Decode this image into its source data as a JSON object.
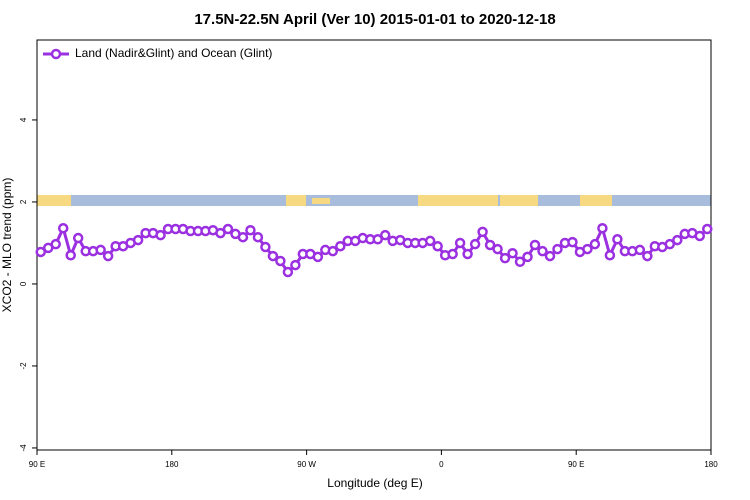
{
  "chart_data": {
    "type": "line",
    "title": "17.5N-22.5N April (Ver 10)   2015-01-01 to 2020-12-18",
    "x_label": "Longitude (deg E)",
    "y_label": "XCO2 - MLO trend (ppm)",
    "xlim": [
      90,
      540
    ],
    "ylim": [
      -4.05,
      5.95
    ],
    "xticks": [
      {
        "value": 90,
        "label": "90 E"
      },
      180,
      {
        "value": 270,
        "label": "90 W"
      },
      {
        "value": 360,
        "label": "0"
      },
      {
        "value": 450,
        "label": "90 E"
      },
      {
        "value": 540,
        "label": "180"
      }
    ],
    "yticks": [
      -4,
      -2,
      0,
      2,
      4
    ],
    "legend": "top-left",
    "x": [
      92.5,
      97.5,
      102.5,
      107.5,
      112.5,
      117.5,
      122.5,
      127.5,
      132.5,
      137.5,
      142.5,
      147.5,
      152.5,
      157.5,
      162.5,
      167.5,
      172.5,
      177.5,
      182.5,
      187.5,
      192.5,
      197.5,
      202.5,
      207.5,
      212.5,
      217.5,
      222.5,
      227.5,
      232.5,
      237.5,
      242.5,
      247.5,
      252.5,
      257.5,
      262.5,
      267.5,
      272.5,
      277.5,
      282.5,
      287.5,
      292.5,
      297.5,
      302.5,
      307.5,
      312.5,
      317.5,
      322.5,
      327.5,
      332.5,
      337.5,
      342.5,
      347.5,
      352.5,
      357.5,
      362.5,
      367.5,
      372.5,
      377.5,
      382.5,
      387.5,
      392.5,
      397.5,
      402.5,
      407.5,
      412.5,
      417.5,
      422.5,
      427.5,
      432.5,
      437.5,
      442.5,
      447.5,
      452.5,
      457.5,
      462.5,
      467.5,
      472.5,
      477.5,
      482.5,
      487.5,
      492.5,
      497.5,
      502.5,
      507.5,
      512.5,
      517.5,
      522.5,
      527.5,
      532.5,
      537.5
    ],
    "series": [
      {
        "name": "Land (Nadir&Glint) and Ocean (Glint)",
        "color": "#9b30e0",
        "values": [
          0.78,
          0.88,
          0.97,
          1.36,
          0.7,
          1.12,
          0.8,
          0.8,
          0.83,
          0.68,
          0.92,
          0.92,
          1.0,
          1.07,
          1.24,
          1.24,
          1.19,
          1.34,
          1.34,
          1.34,
          1.29,
          1.29,
          1.29,
          1.31,
          1.24,
          1.34,
          1.22,
          1.14,
          1.31,
          1.14,
          0.9,
          0.68,
          0.56,
          0.29,
          0.46,
          0.73,
          0.73,
          0.66,
          0.83,
          0.8,
          0.92,
          1.05,
          1.05,
          1.12,
          1.09,
          1.09,
          1.19,
          1.05,
          1.07,
          1.0,
          1.0,
          1.0,
          1.05,
          0.92,
          0.7,
          0.73,
          1.0,
          0.73,
          0.97,
          1.27,
          0.95,
          0.85,
          0.63,
          0.75,
          0.54,
          0.66,
          0.95,
          0.8,
          0.68,
          0.85,
          1.0,
          1.02,
          0.78,
          0.85,
          0.97,
          1.36,
          0.7,
          1.09,
          0.8,
          0.8,
          0.83,
          0.68,
          0.92,
          0.9,
          0.97,
          1.07,
          1.22,
          1.24,
          1.17,
          1.34
        ]
      }
    ]
  }
}
